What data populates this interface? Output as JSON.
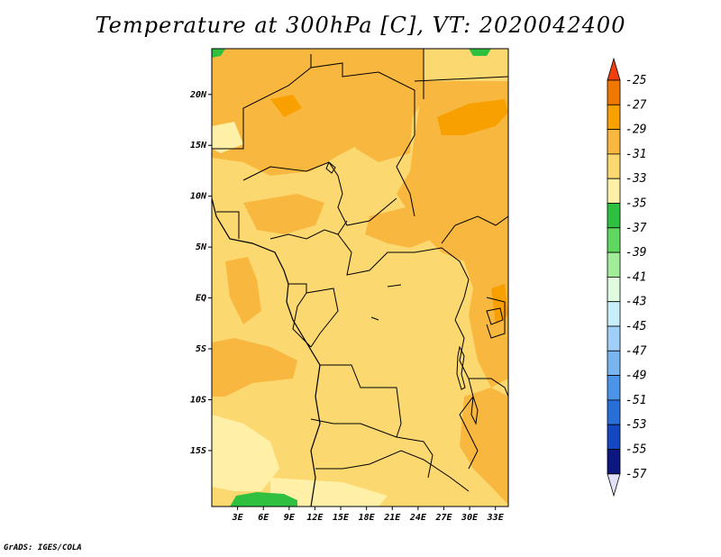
{
  "title": "Temperature at 300hPa [C], VT: 2020042400",
  "footer": "GrADS: IGES/COLA",
  "map": {
    "lon_range": [
      0,
      34.5
    ],
    "lat_range": [
      -20.5,
      24.5
    ],
    "x_ticks": [
      {
        "value": 3,
        "label": "3E"
      },
      {
        "value": 6,
        "label": "6E"
      },
      {
        "value": 9,
        "label": "9E"
      },
      {
        "value": 12,
        "label": "12E"
      },
      {
        "value": 15,
        "label": "15E"
      },
      {
        "value": 18,
        "label": "18E"
      },
      {
        "value": 21,
        "label": "21E"
      },
      {
        "value": 24,
        "label": "24E"
      },
      {
        "value": 27,
        "label": "27E"
      },
      {
        "value": 30,
        "label": "30E"
      },
      {
        "value": 33,
        "label": "33E"
      }
    ],
    "y_ticks": [
      {
        "value": 20,
        "label": "20N"
      },
      {
        "value": 15,
        "label": "15N"
      },
      {
        "value": 10,
        "label": "10N"
      },
      {
        "value": 5,
        "label": "5N"
      },
      {
        "value": 0,
        "label": "EQ"
      },
      {
        "value": -5,
        "label": "5S"
      },
      {
        "value": -10,
        "label": "10S"
      },
      {
        "value": -15,
        "label": "15S"
      }
    ]
  },
  "colorbar": {
    "levels": [
      "-25",
      "-27",
      "-29",
      "-31",
      "-33",
      "-35",
      "-37",
      "-39",
      "-41",
      "-43",
      "-45",
      "-47",
      "-49",
      "-51",
      "-53",
      "-55",
      "-57"
    ],
    "colors": [
      "#f04010",
      "#f07800",
      "#f8a000",
      "#f8b840",
      "#fcd870",
      "#fff0a8",
      "#30c040",
      "#60d860",
      "#a0ec98",
      "#e0fce0",
      "#c8eefa",
      "#a0d0f8",
      "#78b4f0",
      "#4c94e8",
      "#2870d8",
      "#1448c0",
      "#0c1880",
      "#101070"
    ],
    "top_arrow_color": "#f04010",
    "bottom_arrow_color": "#e0e0f8"
  }
}
